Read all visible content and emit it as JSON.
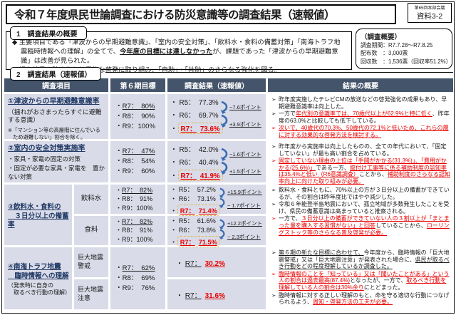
{
  "ref": {
    "line1": "第65回本部会議",
    "line2": "資料3-2"
  },
  "title": "令和７年度県民世論調査における防災意識等の調査結果（速報値）",
  "section1": {
    "label": "1　調査結果の概要",
    "bullets": [
      [
        {
          "t": "◆ 主要項目である「津波からの早期避難意識」、「室内の安全対策」、「飲料水・食料の備蓄対策」「南海トラフ地震臨時情報への理解」の全てで、"
        },
        {
          "t": "今年度の目標には達しなかった",
          "b": true,
          "u": true
        },
        {
          "t": "が、課題であった「津波からの早期避難意識」は改善が見られた。"
        }
      ],
      [
        {
          "t": "◆ 調査結果を踏まえた効果的な啓発に取り組み、「自助」・「共助」のさらなる強化を図る。"
        }
      ]
    ]
  },
  "overview": {
    "title": "（調査概要）",
    "lines": [
      "調査期間：R7.7.28～R7.8.25",
      "配布数　：3,000票",
      "回収数　：1,536票（回収率51.2%）"
    ]
  },
  "section2": {
    "label": "2　調査結果（速報値）"
  },
  "table": {
    "headers": [
      "調査項目",
      "第６期目標",
      "調査結果（速報値）",
      "結果の概要"
    ],
    "rows": {
      "r1": {
        "item": {
          "title": "①津波からの早期避難意識率",
          "desc": "（揺れがおさまったらすぐに避難する意識）",
          "note": "※「マンション等の高層階に住んでいるため避難しない」割合を除く。"
        },
        "targets": [
          {
            "t": "R7：　80%",
            "u": true
          },
          {
            "t": "R8：　90%"
          },
          {
            "t": "R9：100%"
          }
        ],
        "results": {
          "lines": [
            {
              "label": "R5：",
              "value": "77.3%"
            },
            {
              "label": "R6：",
              "value": "69.7%"
            },
            {
              "label": "R7：",
              "value": "73.6%",
              "box": true
            }
          ],
          "diffs": [
            "−7.6ポイント",
            "+3.9ポイント"
          ]
        },
        "summary": [
          {
            "red": false,
            "segments": [
              {
                "t": "昨年度実施したテレビCMの放送などの啓発強化の成果もあり、早期避難意識率は向上した。"
              }
            ]
          },
          {
            "red": false,
            "segments": [
              {
                "t": "一方で"
              },
              {
                "t": "年代別の意識率では、70歳代以上が62.9%と特に低く",
                "r": true,
                "u": true
              },
              {
                "t": "、昨年度の63.0%と比較しても低下している。"
              }
            ]
          },
          {
            "red": true,
            "segments": [
              {
                "t": "次いで、40歳代の70.3%、50歳代の72.1%と低いため、これらの層に対する効果的な啓発方法を検討する。",
                "r": true,
                "u": true
              }
            ]
          }
        ]
      },
      "r2": {
        "item": {
          "title": "②室内の安全対策実施率",
          "bullets": [
            "・家具・家電の固定の対策",
            "・固定が必要な家具・家電を　置かない対策"
          ]
        },
        "targets": [
          {
            "t": "R7：　47%",
            "u": true
          },
          {
            "t": "R8：　54%"
          },
          {
            "t": "R9：　60%"
          }
        ],
        "results": {
          "lines": [
            {
              "label": "R5：",
              "value": "42.0%"
            },
            {
              "label": "R6：",
              "value": "40.4%"
            },
            {
              "label": "R7：",
              "value": "41.9%",
              "box": true
            }
          ],
          "diffs": [
            "−1.6ポイント",
            "+1.5ポイント"
          ]
        },
        "summary": [
          {
            "red": false,
            "segments": [
              {
                "t": "昨年度から実施率は向上したものの、全ての年代において、「固定していない」が最も高い割合を占めている。"
              }
            ]
          },
          {
            "red": true,
            "segments": [
              {
                "t": "固定していない理由の上位は「手間がかかる(31.3%)」、「費用がかかる(25.6%)」",
                "r": true,
                "u": true
              },
              {
                "t": "である一方、"
              },
              {
                "t": "取付け工事等に係る補助制度の認知率は35.4%と低い（R6意識調査）",
                "r": true,
                "u": true
              },
              {
                "t": "ことから、"
              },
              {
                "t": "補助制度のさらなる認知率向上に向けた取り組みが必要。",
                "r": true,
                "u": true
              }
            ]
          }
        ]
      },
      "r3": {
        "item": {
          "title1": "③飲料水・食料の",
          "title2": "　３日分以上の備蓄率"
        },
        "sub1": {
          "label": "飲料水"
        },
        "sub2": {
          "label": "食料"
        },
        "targets1": [
          {
            "t": "R7：　82%",
            "u": true
          },
          {
            "t": "R8：　91%"
          },
          {
            "t": "R9：100%"
          }
        ],
        "targets2": [
          {
            "t": "R7：　82%",
            "u": true
          },
          {
            "t": "R8：　91%"
          },
          {
            "t": "R9：100%"
          }
        ],
        "results1": {
          "lines": [
            {
              "label": "R5：",
              "value": "57.2%"
            },
            {
              "label": "R6：",
              "value": "73.1%"
            },
            {
              "label": "R7：",
              "value": "71.4%",
              "box": true
            }
          ],
          "diffs": [
            "+15.9ポイント",
            "− 1.7ポイント"
          ]
        },
        "results2": {
          "lines": [
            {
              "label": "R5：",
              "value": "61.6%"
            },
            {
              "label": "R6：",
              "value": "73.8%"
            },
            {
              "label": "R7：",
              "value": "71.5%",
              "box": true
            }
          ],
          "diffs": [
            "+12.2ポイント",
            "− 2.3ポイント"
          ]
        },
        "summary": [
          {
            "red": false,
            "segments": [
              {
                "t": "飲料水・食料ともに、70%以上の方が３日分以上の備蓄ができているが、その割合は昨年度比ではやや減少した。"
              }
            ]
          },
          {
            "red": false,
            "segments": [
              {
                "t": "令和６年能登半島地震において、孤立地域が多数発生したことを受け、県民の備蓄意識は高まっていると推察される。"
              }
            ]
          },
          {
            "red": true,
            "segments": [
              {
                "t": "一方で、"
              },
              {
                "t": "３日分以上の備蓄ができていない人の３割以上が「まとまった量を購入する習慣がない」と回答",
                "r": true,
                "u": true
              },
              {
                "t": "していることから、"
              },
              {
                "t": "ローリングストック等のさらなる普及啓発が必要。",
                "r": true,
                "u": true
              }
            ]
          }
        ]
      },
      "r4": {
        "item": {
          "title1": "④南海トラフ地震",
          "title2": "　臨時情報への理解",
          "desc": "（発表時に自身の\n　取るべき行動の理解）"
        },
        "sub1": {
          "label": "巨大地震\n警戒"
        },
        "sub2": {
          "label": "巨大地震\n注意"
        },
        "targets": [
          {
            "t": "R7：　62%",
            "u": true
          },
          {
            "t": "R8：　69%"
          },
          {
            "t": "R9：　76%"
          }
        ],
        "results1": {
          "lines": [
            {
              "label": "R7：",
              "value": "30.2%",
              "lblu": true
            }
          ]
        },
        "results2": {
          "lines": [
            {
              "label": "R7：",
              "value": "31.6%",
              "lblu": true
            }
          ]
        },
        "summary": [
          {
            "red": false,
            "segments": [
              {
                "t": "第６期の新たな目標に合わせて、",
                "u": true
              },
              {
                "t": "今年度から、臨時情報の「巨大地震警戒」又は「巨大地震注意」が発表された場合に、"
              },
              {
                "t": "県民が取るべき行動をどの程度理解しているか調査した。",
                "u": true
              }
            ]
          },
          {
            "red": true,
            "segments": [
              {
                "t": "臨時情報のことを「知っている」又は「聞いたことがある」という人の割合は過去最高(87.4%)",
                "r": true,
                "u": true
              },
              {
                "t": "となったが、一方で、"
              },
              {
                "t": "取るべき行動を理解している人の割合は30%余り",
                "r": true,
                "u": true
              },
              {
                "t": "にとどまった。"
              }
            ]
          },
          {
            "red": false,
            "segments": [
              {
                "t": "臨時情報に対する正しい理解のもと、命を守る適切な行動につなげられるよう、"
              },
              {
                "t": "周知・啓発方法の工夫が必要。",
                "r": true,
                "u": true
              }
            ]
          }
        ]
      }
    }
  }
}
